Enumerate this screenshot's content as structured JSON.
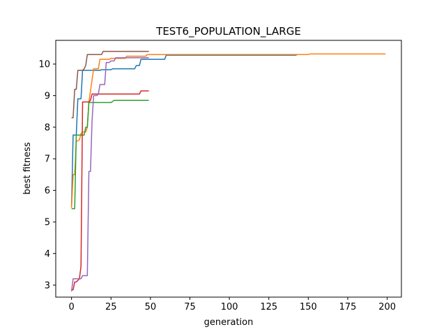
{
  "chart_data": {
    "type": "line",
    "title": "TEST6_POPULATION_LARGE",
    "xlabel": "generation",
    "ylabel": "best fitness",
    "xlim": [
      -10,
      209
    ],
    "ylim": [
      2.62,
      10.75
    ],
    "xticks": [
      0,
      25,
      50,
      75,
      100,
      125,
      150,
      175,
      200
    ],
    "yticks": [
      3,
      4,
      5,
      6,
      7,
      8,
      9,
      10
    ],
    "grid": false,
    "legend": "none",
    "series": [
      {
        "color": "#1f77b4",
        "points": [
          [
            0,
            5.45
          ],
          [
            1,
            7.75
          ],
          [
            3,
            7.75
          ],
          [
            4,
            8.9
          ],
          [
            6,
            8.9
          ],
          [
            7,
            9.8
          ],
          [
            18,
            9.8
          ],
          [
            19,
            9.82
          ],
          [
            25,
            9.82
          ],
          [
            26,
            9.85
          ],
          [
            40,
            9.85
          ],
          [
            41,
            9.95
          ],
          [
            43,
            9.95
          ],
          [
            44,
            10.15
          ],
          [
            59,
            10.15
          ],
          [
            60,
            10.28
          ],
          [
            142,
            10.28
          ],
          [
            143,
            10.3
          ]
        ]
      },
      {
        "color": "#ff7f0e",
        "points": [
          [
            0,
            5.45
          ],
          [
            1,
            6.5
          ],
          [
            2,
            6.5
          ],
          [
            3,
            7.55
          ],
          [
            5,
            7.6
          ],
          [
            6,
            7.8
          ],
          [
            7,
            7.85
          ],
          [
            9,
            7.85
          ],
          [
            10,
            8.0
          ],
          [
            11,
            8.8
          ],
          [
            14,
            9.85
          ],
          [
            17,
            9.85
          ],
          [
            18,
            10.15
          ],
          [
            24,
            10.15
          ],
          [
            25,
            10.18
          ],
          [
            34,
            10.18
          ],
          [
            35,
            10.25
          ],
          [
            47,
            10.25
          ],
          [
            48,
            10.3
          ],
          [
            150,
            10.3
          ],
          [
            151,
            10.32
          ],
          [
            199,
            10.32
          ]
        ]
      },
      {
        "color": "#2ca02c",
        "points": [
          [
            0,
            5.42
          ],
          [
            2,
            5.42
          ],
          [
            3,
            7.75
          ],
          [
            8,
            7.75
          ],
          [
            9,
            8.0
          ],
          [
            10,
            8.0
          ],
          [
            11,
            8.78
          ],
          [
            25,
            8.78
          ],
          [
            27,
            8.85
          ],
          [
            49,
            8.85
          ]
        ]
      },
      {
        "color": "#d62728",
        "points": [
          [
            0,
            2.85
          ],
          [
            1,
            2.85
          ],
          [
            2,
            3.1
          ],
          [
            3,
            3.1
          ],
          [
            4,
            3.15
          ],
          [
            5,
            3.2
          ],
          [
            6,
            3.6
          ],
          [
            7,
            8.8
          ],
          [
            11,
            8.8
          ],
          [
            12,
            8.85
          ],
          [
            13,
            9.05
          ],
          [
            43,
            9.05
          ],
          [
            44,
            9.15
          ],
          [
            49,
            9.15
          ]
        ]
      },
      {
        "color": "#9467bd",
        "points": [
          [
            0,
            2.8
          ],
          [
            1,
            3.2
          ],
          [
            5,
            3.2
          ],
          [
            6,
            3.2
          ],
          [
            7,
            3.3
          ],
          [
            10,
            3.3
          ],
          [
            11,
            6.6
          ],
          [
            12,
            6.6
          ],
          [
            13,
            8.2
          ],
          [
            14,
            9.0
          ],
          [
            16,
            9.0
          ],
          [
            17,
            9.05
          ],
          [
            18,
            9.35
          ],
          [
            21,
            9.35
          ],
          [
            22,
            10.05
          ],
          [
            24,
            10.05
          ],
          [
            25,
            10.1
          ],
          [
            27,
            10.1
          ],
          [
            28,
            10.2
          ],
          [
            49,
            10.2
          ]
        ]
      },
      {
        "color": "#8c564b",
        "points": [
          [
            0,
            8.3
          ],
          [
            1,
            8.3
          ],
          [
            2,
            9.2
          ],
          [
            3,
            9.2
          ],
          [
            4,
            9.8
          ],
          [
            7,
            9.8
          ],
          [
            8,
            9.85
          ],
          [
            9,
            9.95
          ],
          [
            10,
            10.3
          ],
          [
            19,
            10.3
          ],
          [
            20,
            10.4
          ],
          [
            49,
            10.4
          ]
        ]
      }
    ]
  }
}
